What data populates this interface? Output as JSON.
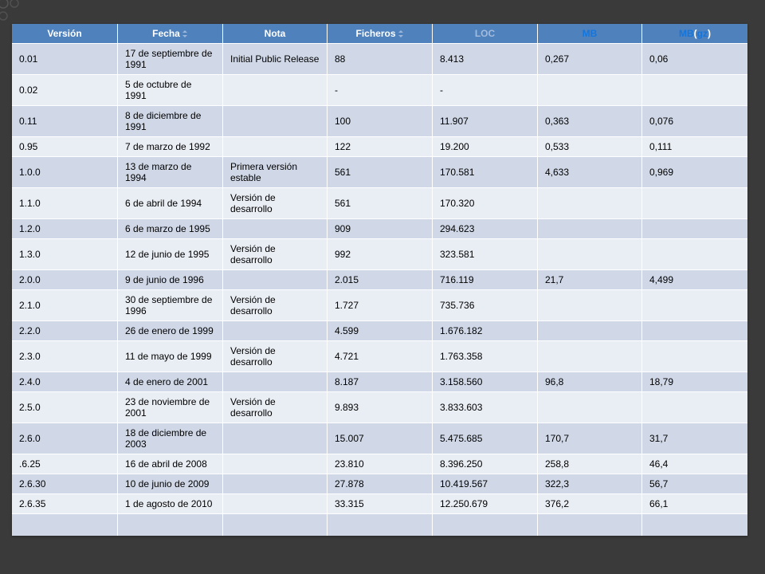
{
  "slide": {
    "background": "#3a3a3a"
  },
  "table": {
    "colors": {
      "header_bg": "#4f81bd",
      "band_dark": "#d0d8e8",
      "band_light": "#e9edf4",
      "link": "#1476dc",
      "link_faint": "#a3bbdc"
    },
    "headers": {
      "version": "Versión",
      "date": "Fecha",
      "note": "Nota",
      "files": "Ficheros",
      "loc": "LOC",
      "mb": "MB",
      "mb_gz": "MB",
      "mb_gz_open": " (",
      "gz": "gz",
      "mb_gz_close": ")"
    },
    "rows": [
      {
        "version": "0.01",
        "date": "17 de septiembre de 1991",
        "note": "Initial Public Release",
        "files": "88",
        "loc": "8.413",
        "mb": "0,267",
        "mb_gz": "0,06"
      },
      {
        "version": "0.02",
        "date": "5 de octubre de 1991",
        "files": "-",
        "loc": "-"
      },
      {
        "version": "0.11",
        "date": "8 de diciembre de 1991",
        "files": "100",
        "loc": "11.907",
        "mb": "0,363",
        "mb_gz": "0,076"
      },
      {
        "version": "0.95",
        "date": "7 de marzo de 1992",
        "files": "122",
        "loc": "19.200",
        "mb": "0,533",
        "mb_gz": "0,111"
      },
      {
        "version": "1.0.0",
        "date": "13 de marzo de 1994",
        "note": "Primera versión estable",
        "files": "561",
        "loc": "170.581",
        "mb": "4,633",
        "mb_gz": "0,969"
      },
      {
        "version": "1.1.0",
        "date": "6 de abril de 1994",
        "note": "Versión de desarrollo",
        "files": "561",
        "loc": "170.320"
      },
      {
        "version": "1.2.0",
        "date": "6 de marzo de 1995",
        "files": "909",
        "loc": "294.623"
      },
      {
        "version": "1.3.0",
        "date": "12 de junio de 1995",
        "note": "Versión de desarrollo",
        "files": "992",
        "loc": "323.581"
      },
      {
        "version": "2.0.0",
        "date": "9 de junio de 1996",
        "files": "2.015",
        "loc": "716.119",
        "mb": "21,7",
        "mb_gz": "4,499"
      },
      {
        "version": "2.1.0",
        "date": "30 de septiembre de 1996",
        "note": "Versión de desarrollo",
        "files": "1.727",
        "loc": "735.736"
      },
      {
        "version": "2.2.0",
        "date": "26 de enero de 1999",
        "files": "4.599",
        "loc": "1.676.182"
      },
      {
        "version": "2.3.0",
        "date": "11 de mayo de 1999",
        "note": "Versión de desarrollo",
        "files": "4.721",
        "loc": "1.763.358"
      },
      {
        "version": "2.4.0",
        "date": "4 de enero de 2001",
        "files": "8.187",
        "loc": "3.158.560",
        "mb": "96,8",
        "mb_gz": "18,79"
      },
      {
        "version": "2.5.0",
        "date": "23 de noviembre de 2001",
        "note": "Versión de desarrollo",
        "files": "9.893",
        "loc": "3.833.603"
      },
      {
        "version": "2.6.0",
        "date": "18 de diciembre de 2003",
        "files": "15.007",
        "loc": "5.475.685",
        "mb": "170,7",
        "mb_gz": "31,7"
      },
      {
        "version": ".6.25",
        "date": "16 de abril de 2008",
        "files": "23.810",
        "loc": "8.396.250",
        "mb": "258,8",
        "mb_gz": "46,4"
      },
      {
        "version": "2.6.30",
        "date": "10 de junio de 2009",
        "files": "27.878",
        "loc": "10.419.567",
        "mb": "322,3",
        "mb_gz": "56,7"
      },
      {
        "version": "2.6.35",
        "date": "1 de agosto de 2010",
        "files": "33.315",
        "loc": "12.250.679",
        "mb": "376,2",
        "mb_gz": "66,1"
      }
    ]
  }
}
